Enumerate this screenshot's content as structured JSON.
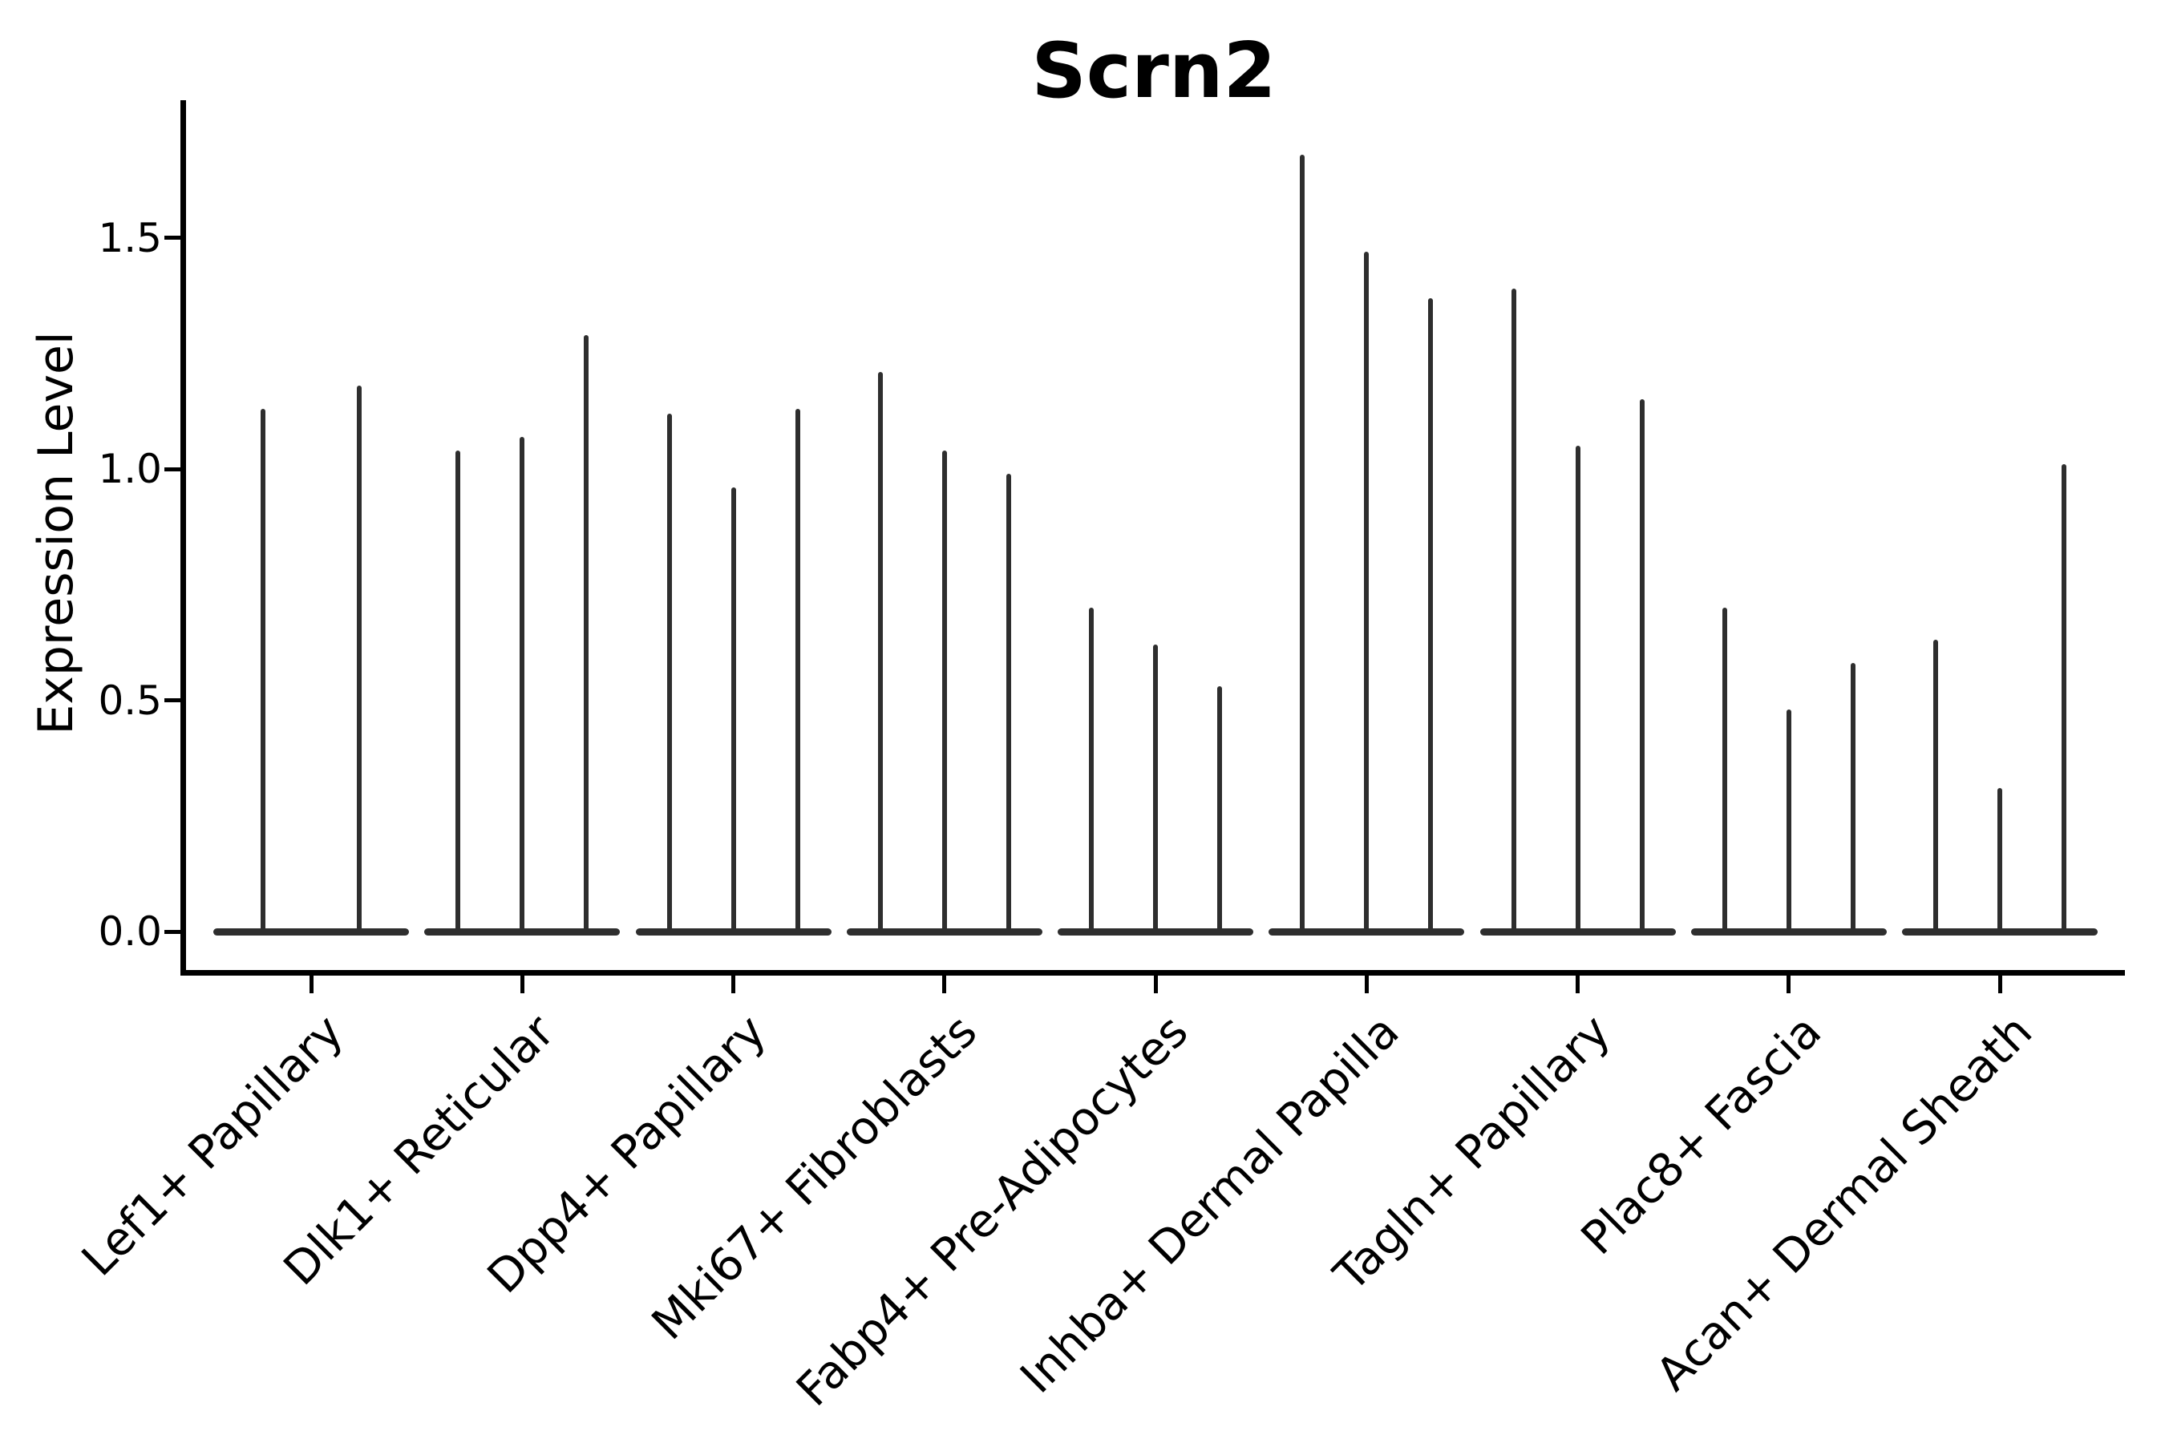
{
  "chart_data": {
    "type": "violin",
    "title": "Scrn2",
    "ylabel": "Expression Level",
    "xlabel": "",
    "ylim": [
      -0.08,
      1.8
    ],
    "yticks": [
      0.0,
      0.5,
      1.0,
      1.5
    ],
    "ytick_labels": [
      "0.0",
      "0.5",
      "1.0",
      "1.5"
    ],
    "grid": false,
    "legend_position": "none",
    "violin_color": "#2e2e2e",
    "axis_color": "#000000",
    "background_color": "#ffffff",
    "note": "Each category shows very thin needle violins rising from a flat base at expression 0; values are the peak expression level of each violin, left to right within the group.",
    "categories": [
      {
        "label": "Lef1+ Papillary",
        "values": [
          1.13,
          1.18
        ]
      },
      {
        "label": "Dlk1+ Reticular",
        "values": [
          1.04,
          1.07,
          1.29
        ]
      },
      {
        "label": "Dpp4+ Papillary",
        "values": [
          1.12,
          0.96,
          1.13
        ]
      },
      {
        "label": "Mki67+ Fibroblasts",
        "values": [
          1.21,
          1.04,
          0.99
        ]
      },
      {
        "label": "Fabp4+ Pre-Adipocytes",
        "values": [
          0.7,
          0.62,
          0.53
        ]
      },
      {
        "label": "Inhba+ Dermal Papilla",
        "values": [
          1.68,
          1.47,
          1.37
        ]
      },
      {
        "label": "Tagln+ Papillary",
        "values": [
          1.39,
          1.05,
          1.15
        ]
      },
      {
        "label": "Plac8+ Fascia",
        "values": [
          0.7,
          0.48,
          0.58
        ]
      },
      {
        "label": "Acan+ Dermal Sheath",
        "values": [
          0.63,
          0.31,
          1.01
        ]
      }
    ]
  }
}
